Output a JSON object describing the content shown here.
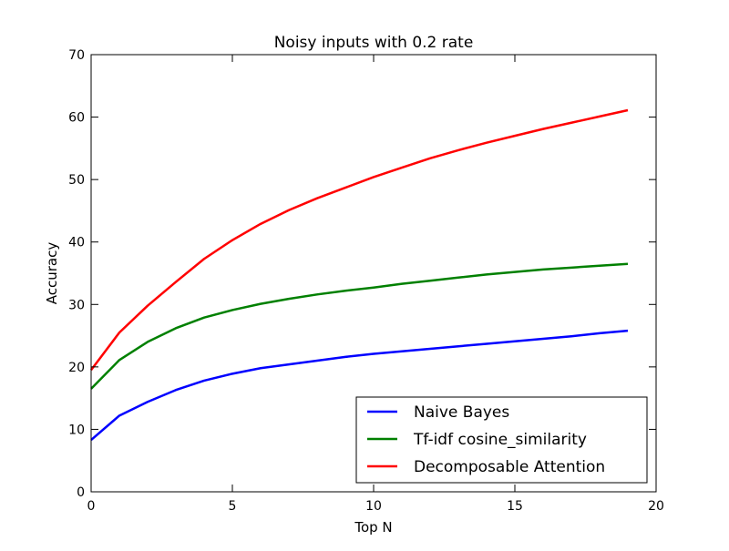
{
  "chart_data": {
    "type": "line",
    "title": "Noisy inputs with 0.2 rate",
    "xlabel": "Top N",
    "ylabel": "Accuracy",
    "xlim": [
      0,
      20
    ],
    "ylim": [
      0,
      70
    ],
    "xticks": [
      "0",
      "5",
      "10",
      "15",
      "20"
    ],
    "yticks": [
      "0",
      "10",
      "20",
      "30",
      "40",
      "50",
      "60",
      "70"
    ],
    "grid": false,
    "legend_position": "lower-right",
    "x": [
      0,
      1,
      2,
      3,
      4,
      5,
      6,
      7,
      8,
      9,
      10,
      11,
      12,
      13,
      14,
      15,
      16,
      17,
      18,
      19
    ],
    "series": [
      {
        "name": "Naive Bayes",
        "color": "#0000ff",
        "values": [
          8.3,
          12.2,
          14.4,
          16.3,
          17.8,
          18.9,
          19.8,
          20.4,
          21.0,
          21.6,
          22.1,
          22.5,
          22.9,
          23.3,
          23.7,
          24.1,
          24.5,
          24.9,
          25.4,
          25.8
        ]
      },
      {
        "name": "Tf-idf cosine_similarity",
        "color": "#008000",
        "values": [
          16.5,
          21.1,
          24.0,
          26.2,
          27.9,
          29.1,
          30.1,
          30.9,
          31.6,
          32.2,
          32.7,
          33.3,
          33.8,
          34.3,
          34.8,
          35.2,
          35.6,
          35.9,
          36.2,
          36.5
        ]
      },
      {
        "name": "Decomposable Attention",
        "color": "#ff0000",
        "values": [
          19.5,
          25.5,
          29.8,
          33.6,
          37.3,
          40.3,
          42.9,
          45.1,
          47.0,
          48.7,
          50.4,
          51.9,
          53.4,
          54.7,
          55.9,
          57.0,
          58.1,
          59.1,
          60.1,
          61.1
        ]
      }
    ]
  }
}
